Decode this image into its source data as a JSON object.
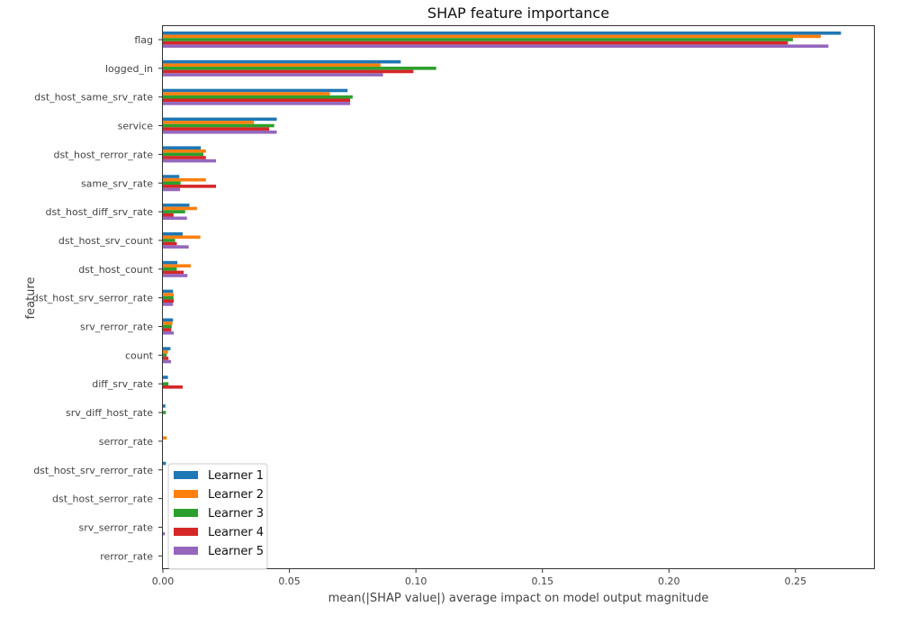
{
  "chart_data": {
    "type": "bar",
    "orientation": "horizontal",
    "title": "SHAP feature importance",
    "xlabel": "mean(|SHAP value|) average impact on model output magnitude",
    "ylabel": "feature",
    "xlim": [
      0,
      0.281
    ],
    "xticks": [
      0.0,
      0.05,
      0.1,
      0.15,
      0.2,
      0.25
    ],
    "xtick_labels": [
      "0.00",
      "0.05",
      "0.10",
      "0.15",
      "0.20",
      "0.25"
    ],
    "grid": false,
    "legend_position": "bottom-left",
    "categories": [
      "flag",
      "logged_in",
      "dst_host_same_srv_rate",
      "service",
      "dst_host_rerror_rate",
      "same_srv_rate",
      "dst_host_diff_srv_rate",
      "dst_host_srv_count",
      "dst_host_count",
      "dst_host_srv_serror_rate",
      "srv_rerror_rate",
      "count",
      "diff_srv_rate",
      "srv_diff_host_rate",
      "serror_rate",
      "dst_host_srv_rerror_rate",
      "dst_host_serror_rate",
      "srv_serror_rate",
      "rerror_rate"
    ],
    "series": [
      {
        "name": "Learner 1",
        "color": "#1f77b4",
        "values": [
          0.268,
          0.094,
          0.073,
          0.045,
          0.015,
          0.0065,
          0.0105,
          0.0078,
          0.0057,
          0.004,
          0.004,
          0.003,
          0.002,
          0.001,
          0.0,
          0.0012,
          0.0,
          0.0,
          0.0
        ]
      },
      {
        "name": "Learner 2",
        "color": "#ff7f0e",
        "values": [
          0.26,
          0.086,
          0.066,
          0.036,
          0.017,
          0.017,
          0.0135,
          0.0148,
          0.011,
          0.0043,
          0.0038,
          0.002,
          0.0,
          0.0,
          0.0015,
          0.0,
          0.0,
          0.0,
          0.0
        ]
      },
      {
        "name": "Learner 3",
        "color": "#2ca02c",
        "values": [
          0.249,
          0.108,
          0.075,
          0.044,
          0.016,
          0.007,
          0.0088,
          0.0048,
          0.0055,
          0.0042,
          0.0035,
          0.0015,
          0.0022,
          0.0012,
          0.0,
          0.0,
          0.0,
          0.0,
          0.0
        ]
      },
      {
        "name": "Learner 4",
        "color": "#d62728",
        "values": [
          0.247,
          0.099,
          0.074,
          0.042,
          0.017,
          0.021,
          0.0042,
          0.0055,
          0.0082,
          0.0043,
          0.0033,
          0.0022,
          0.0078,
          0.0,
          0.0,
          0.0,
          0.0,
          0.0,
          0.0
        ]
      },
      {
        "name": "Learner 5",
        "color": "#9467bd",
        "values": [
          0.263,
          0.087,
          0.074,
          0.045,
          0.021,
          0.0068,
          0.0095,
          0.0102,
          0.0097,
          0.004,
          0.0043,
          0.0032,
          0.0,
          0.0,
          0.0,
          0.0,
          0.0,
          0.0008,
          0.0
        ]
      }
    ]
  }
}
